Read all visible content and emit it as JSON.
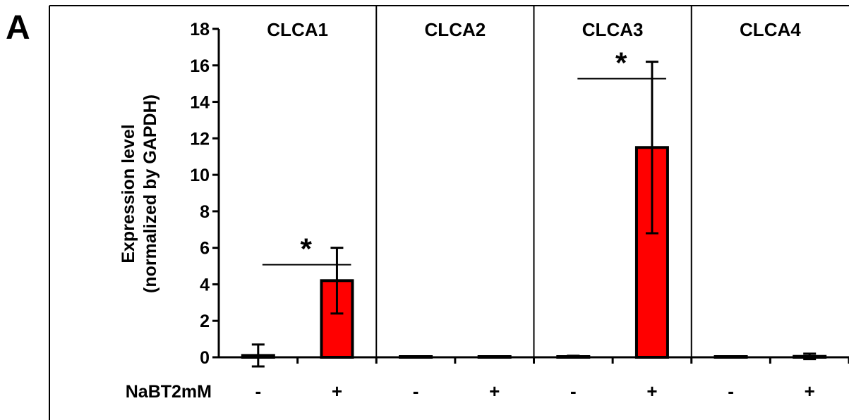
{
  "chart_data": {
    "type": "bar",
    "panel_label": "A",
    "ylabel": "Expression level",
    "ylabel_sub": "(normalized by GAPDH)",
    "ylim": [
      0,
      18
    ],
    "yticks": [
      "0",
      "2",
      "4",
      "6",
      "8",
      "10",
      "12",
      "14",
      "16",
      "18"
    ],
    "treatment_label": "NaBT2mM",
    "groups": [
      {
        "name": "CLCA1",
        "bars": [
          {
            "condition": "-",
            "value": 0.1,
            "error": 0.6
          },
          {
            "condition": "+",
            "value": 4.2,
            "error": 1.8
          }
        ],
        "significance": "*"
      },
      {
        "name": "CLCA2",
        "bars": [
          {
            "condition": "-",
            "value": 0.0,
            "error": 0.0
          },
          {
            "condition": "+",
            "value": 0.0,
            "error": 0.0
          }
        ],
        "significance": ""
      },
      {
        "name": "CLCA3",
        "bars": [
          {
            "condition": "-",
            "value": 0.03,
            "error": 0.05
          },
          {
            "condition": "+",
            "value": 11.5,
            "error": 4.7
          }
        ],
        "significance": "*"
      },
      {
        "name": "CLCA4",
        "bars": [
          {
            "condition": "-",
            "value": 0.02,
            "error": 0.03
          },
          {
            "condition": "+",
            "value": 0.05,
            "error": 0.15
          }
        ],
        "significance": ""
      }
    ],
    "colors": {
      "minus": "#ffffff",
      "plus": "#ff0000",
      "outline": "#000000"
    },
    "grid": false
  }
}
